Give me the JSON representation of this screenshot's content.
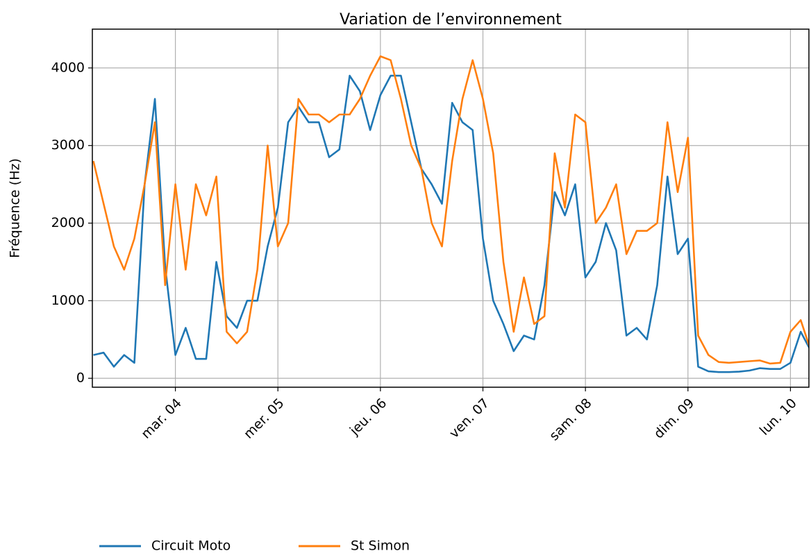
{
  "chart_data": {
    "type": "line",
    "title": "Variation de l’environnement",
    "ylabel": "Fréquence (Hz)",
    "x": [
      3.2,
      3.3,
      3.4,
      3.5,
      3.6,
      3.7,
      3.8,
      3.9,
      4.0,
      4.1,
      4.2,
      4.3,
      4.4,
      4.5,
      4.6,
      4.7,
      4.8,
      4.9,
      5.0,
      5.1,
      5.2,
      5.3,
      5.4,
      5.5,
      5.6,
      5.7,
      5.8,
      5.9,
      6.0,
      6.1,
      6.2,
      6.3,
      6.4,
      6.5,
      6.6,
      6.7,
      6.8,
      6.9,
      7.0,
      7.1,
      7.2,
      7.3,
      7.4,
      7.5,
      7.6,
      7.7,
      7.8,
      7.9,
      8.0,
      8.1,
      8.2,
      8.3,
      8.4,
      8.5,
      8.6,
      8.7,
      8.8,
      8.9,
      9.0,
      9.1,
      9.2,
      9.3,
      9.4,
      9.5,
      9.6,
      9.7,
      9.8,
      9.9,
      10.0,
      10.1,
      10.2
    ],
    "series": [
      {
        "name": "Circuit Moto",
        "color": "#1f77b4",
        "values": [
          300,
          330,
          150,
          300,
          200,
          2500,
          3600,
          1450,
          300,
          650,
          250,
          250,
          1500,
          800,
          650,
          1000,
          1000,
          1700,
          2200,
          3300,
          3500,
          3300,
          3300,
          2850,
          2950,
          3900,
          3700,
          3200,
          3650,
          3900,
          3900,
          3300,
          2700,
          2500,
          2250,
          3550,
          3300,
          3200,
          1800,
          1000,
          700,
          350,
          550,
          500,
          1200,
          2400,
          2100,
          2500,
          1300,
          1500,
          2000,
          1650,
          550,
          650,
          500,
          1200,
          2600,
          1600,
          1800,
          150,
          90,
          80,
          80,
          85,
          100,
          130,
          120,
          120,
          200,
          600,
          350
        ]
      },
      {
        "name": "St Simon",
        "color": "#ff7f0e",
        "values": [
          2800,
          2250,
          1700,
          1400,
          1800,
          2500,
          3300,
          1200,
          2500,
          1400,
          2500,
          2100,
          2600,
          600,
          450,
          600,
          1400,
          3000,
          1700,
          2000,
          3600,
          3400,
          3400,
          3300,
          3400,
          3400,
          3600,
          3900,
          4150,
          4100,
          3600,
          3000,
          2700,
          2000,
          1700,
          2800,
          3600,
          4100,
          3600,
          2900,
          1500,
          600,
          1300,
          700,
          800,
          2900,
          2200,
          3400,
          3300,
          2000,
          2200,
          2500,
          1600,
          1900,
          1900,
          2000,
          3300,
          2400,
          3100,
          550,
          300,
          210,
          200,
          210,
          220,
          230,
          190,
          200,
          600,
          750,
          350
        ]
      }
    ],
    "xlim": [
      3.19,
      10.18
    ],
    "xticks": [
      {
        "value": 4,
        "label": "mar. 04"
      },
      {
        "value": 5,
        "label": "mer. 05"
      },
      {
        "value": 6,
        "label": "jeu. 06"
      },
      {
        "value": 7,
        "label": "ven. 07"
      },
      {
        "value": 8,
        "label": "sam. 08"
      },
      {
        "value": 9,
        "label": "dim. 09"
      },
      {
        "value": 10,
        "label": "lun. 10"
      }
    ],
    "ylim": [
      -115,
      4500
    ],
    "yticks": [
      0,
      1000,
      2000,
      3000,
      4000
    ],
    "grid": true,
    "legend": "bottom"
  }
}
